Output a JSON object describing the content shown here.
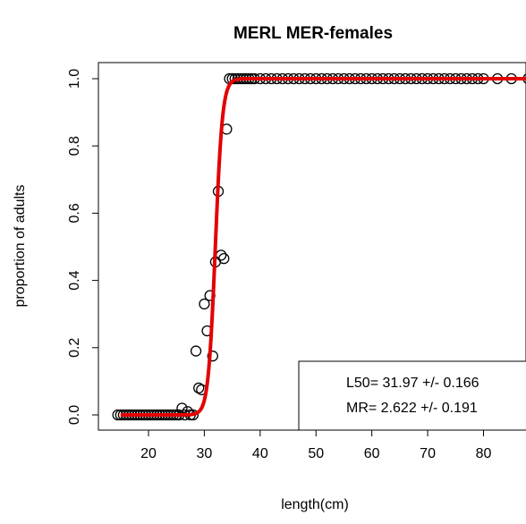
{
  "chart_data": {
    "type": "scatter",
    "title": "MERL MER-females",
    "xlabel": "length(cm)",
    "ylabel": "proportion of adults",
    "xlim": [
      14,
      88
    ],
    "ylim": [
      0,
      1
    ],
    "x_ticks": [
      20,
      30,
      40,
      50,
      60,
      70,
      80
    ],
    "y_ticks": [
      "0.0",
      "0.2",
      "0.4",
      "0.6",
      "0.8",
      "1.0"
    ],
    "grid": false,
    "legend_position": "bottom-right",
    "annotation": {
      "line1": "L50=  31.97 +/- 0.166",
      "line2": "MR=  2.622 +/- 0.191"
    },
    "series": [
      {
        "marker": "open-circle",
        "color": "#000000",
        "points": [
          [
            14.5,
            0
          ],
          [
            15,
            0
          ],
          [
            15.5,
            0
          ],
          [
            16,
            0
          ],
          [
            16.5,
            0
          ],
          [
            17,
            0
          ],
          [
            17.5,
            0
          ],
          [
            18,
            0
          ],
          [
            18.5,
            0
          ],
          [
            19,
            0
          ],
          [
            19.5,
            0
          ],
          [
            20,
            0
          ],
          [
            20.5,
            0
          ],
          [
            21,
            0
          ],
          [
            21.5,
            0
          ],
          [
            22,
            0
          ],
          [
            22.5,
            0
          ],
          [
            23,
            0
          ],
          [
            23.5,
            0
          ],
          [
            24,
            0
          ],
          [
            24.5,
            0
          ],
          [
            25,
            0
          ],
          [
            25.5,
            0
          ],
          [
            26,
            0.02
          ],
          [
            26.5,
            0
          ],
          [
            27,
            0.01
          ],
          [
            27.5,
            0
          ],
          [
            28,
            0
          ],
          [
            28.5,
            0.19
          ],
          [
            29,
            0.08
          ],
          [
            29.5,
            0.075
          ],
          [
            30,
            0.33
          ],
          [
            30.5,
            0.25
          ],
          [
            31,
            0.355
          ],
          [
            31.5,
            0.175
          ],
          [
            32,
            0.455
          ],
          [
            32.5,
            0.665
          ],
          [
            33,
            0.475
          ],
          [
            33.5,
            0.465
          ],
          [
            34,
            0.85
          ],
          [
            34.5,
            1
          ],
          [
            35,
            1
          ],
          [
            35.5,
            1
          ],
          [
            36,
            1
          ],
          [
            36.5,
            1
          ],
          [
            37,
            1
          ],
          [
            37.5,
            1
          ],
          [
            38,
            1
          ],
          [
            38.5,
            1
          ],
          [
            39,
            1
          ],
          [
            40,
            1
          ],
          [
            41,
            1
          ],
          [
            42,
            1
          ],
          [
            43,
            1
          ],
          [
            44,
            1
          ],
          [
            45,
            1
          ],
          [
            46,
            1
          ],
          [
            47,
            1
          ],
          [
            48,
            1
          ],
          [
            49,
            1
          ],
          [
            50,
            1
          ],
          [
            51,
            1
          ],
          [
            52,
            1
          ],
          [
            53,
            1
          ],
          [
            54,
            1
          ],
          [
            55,
            1
          ],
          [
            56,
            1
          ],
          [
            57,
            1
          ],
          [
            58,
            1
          ],
          [
            59,
            1
          ],
          [
            60,
            1
          ],
          [
            61,
            1
          ],
          [
            62,
            1
          ],
          [
            63,
            1
          ],
          [
            64,
            1
          ],
          [
            65,
            1
          ],
          [
            66,
            1
          ],
          [
            67,
            1
          ],
          [
            68,
            1
          ],
          [
            69,
            1
          ],
          [
            70,
            1
          ],
          [
            71,
            1
          ],
          [
            72,
            1
          ],
          [
            73,
            1
          ],
          [
            74,
            1
          ],
          [
            75,
            1
          ],
          [
            76,
            1
          ],
          [
            77,
            1
          ],
          [
            78,
            1
          ],
          [
            79,
            1
          ],
          [
            80,
            1
          ],
          [
            82.5,
            1
          ],
          [
            85,
            1
          ],
          [
            88,
            1
          ]
        ]
      }
    ],
    "fit_curve": {
      "color": "#e30000",
      "model": "logistic",
      "L50": 31.97,
      "MR": 2.622,
      "x_range": [
        15,
        88
      ]
    }
  }
}
